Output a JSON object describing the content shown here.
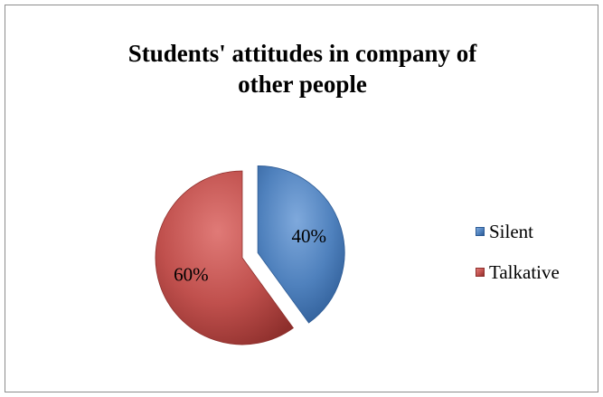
{
  "chart_data": {
    "type": "pie",
    "title_lines": [
      "Students' attitudes in company of",
      "other people"
    ],
    "slices": [
      {
        "name": "Silent",
        "value": 40,
        "label": "40%",
        "color": "#4f81bd",
        "dark": "#2c5a94",
        "light": "#7fa9dc",
        "exploded": true
      },
      {
        "name": "Talkative",
        "value": 60,
        "label": "60%",
        "color": "#c0504d",
        "dark": "#8e2f2c",
        "light": "#e07a77",
        "exploded": false
      }
    ],
    "legend_position": "right",
    "start_angle_deg": 0,
    "direction": "clockwise"
  }
}
